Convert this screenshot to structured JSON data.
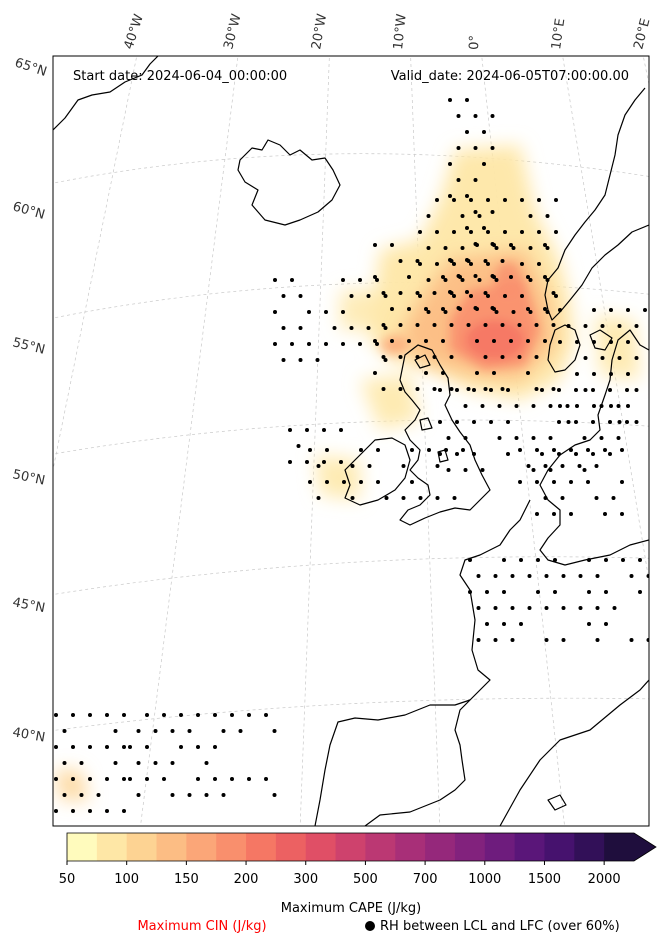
{
  "map": {
    "start_date": "Start date: 2024-06-04_00:00:00",
    "valid_date": "Valid_date: 2024-06-05T07:00:00.00",
    "lon_labels": [
      "40°W",
      "30°W",
      "20°W",
      "10°W",
      "0°",
      "10°E",
      "20°E"
    ],
    "lat_labels": [
      "65°N",
      "60°N",
      "55°N",
      "50°N",
      "45°N",
      "40°N"
    ]
  },
  "colorbar": {
    "title": "Maximum CAPE (J/kg)",
    "ticks": [
      "50",
      "100",
      "150",
      "200",
      "300",
      "500",
      "700",
      "1000",
      "1500",
      "2000"
    ],
    "colors": [
      "#fffbbd",
      "#fee7a6",
      "#fdd393",
      "#fcbd84",
      "#fba678",
      "#f98f6d",
      "#f57764",
      "#ec6162",
      "#e04f66",
      "#ce426d",
      "#bb3873",
      "#a82f78",
      "#95287b",
      "#82227d",
      "#6e1c7d",
      "#5a1679",
      "#46126e",
      "#321058",
      "#1f0e3d"
    ]
  },
  "legend": {
    "cin_label": "Maximum CIN (J/kg)",
    "cin_color": "#ff0000",
    "rh_label": "RH between LCL and LFC (over 60%)"
  }
}
